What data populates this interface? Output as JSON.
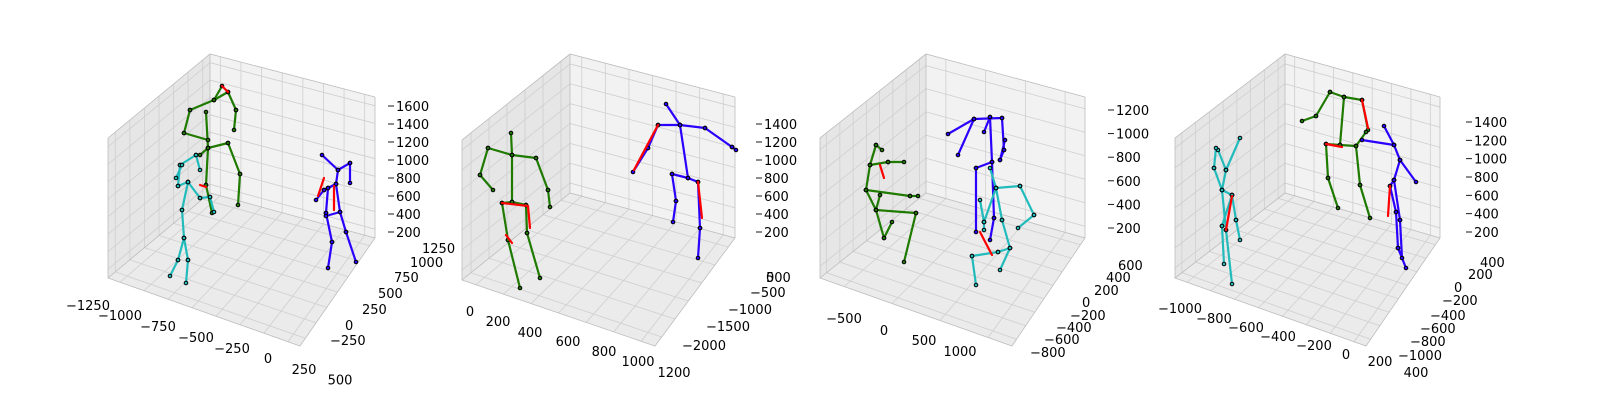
{
  "chart_data": [
    {
      "type": "3d-skeleton",
      "z_ticks": [
        "200",
        "400",
        "600",
        "800",
        "1000",
        "1200",
        "1400",
        "1600"
      ],
      "x_ticks": [
        "−1250",
        "−1000",
        "−750",
        "−500",
        "−250",
        "0",
        "250",
        "500"
      ],
      "y_ticks": [
        "−250",
        "0",
        "250",
        "500",
        "750",
        "1000",
        "1250"
      ]
    },
    {
      "type": "3d-skeleton",
      "z_ticks": [
        "200",
        "400",
        "600",
        "800",
        "1000",
        "1200",
        "1400"
      ],
      "x_ticks": [
        "0",
        "200",
        "400",
        "600",
        "800",
        "1000",
        "1200"
      ],
      "y_ticks": [
        "−2000",
        "−1500",
        "−1000",
        "−500",
        "0",
        "500"
      ]
    },
    {
      "type": "3d-skeleton",
      "z_ticks": [
        "200",
        "400",
        "600",
        "800",
        "1000",
        "1200"
      ],
      "x_ticks": [
        "−500",
        "0",
        "500",
        "1000"
      ],
      "y_ticks": [
        "−800",
        "−600",
        "−400",
        "−200",
        "0",
        "200",
        "400",
        "600"
      ]
    },
    {
      "type": "3d-skeleton",
      "z_ticks": [
        "200",
        "400",
        "600",
        "800",
        "1000",
        "1200",
        "1400"
      ],
      "x_ticks": [
        "−1000",
        "−800",
        "−600",
        "−400",
        "−200",
        "0",
        "200",
        "400"
      ],
      "y_ticks": [
        "−1000",
        "−800",
        "−600",
        "−400",
        "−200",
        "0",
        "200",
        "400"
      ]
    }
  ],
  "colors": {
    "ground_truth": "#ff0000",
    "person_a": "#1f7a00",
    "person_b": "#2b00ff",
    "person_c": "#22bbbb"
  }
}
